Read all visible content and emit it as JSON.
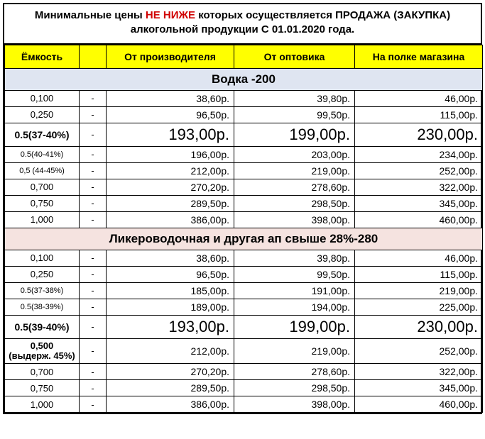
{
  "title": {
    "part1": "Минимальные цены ",
    "emph": "НЕ НИЖЕ",
    "part2": " которых осуществляется ПРОДАЖА (ЗАКУПКА) алкогольной продукции С 01.01.2020 года."
  },
  "columns": {
    "capacity": "Ёмкость",
    "spacer": "",
    "producer": "От производителя",
    "wholesaler": "От оптовика",
    "shelf": "На полке магазина"
  },
  "sections": [
    {
      "label": "Водка -200",
      "class": "s1",
      "rows": [
        {
          "cap": "0,100",
          "p": "38,60р.",
          "w": "39,80р.",
          "s": "46,00р."
        },
        {
          "cap": "0,250",
          "p": "96,50р.",
          "w": "99,50р.",
          "s": "115,00р."
        },
        {
          "cap": "0.5(37-40%)",
          "big": true,
          "p": "193,00р.",
          "w": "199,00р.",
          "s": "230,00р."
        },
        {
          "cap": "0.5(40-41%)",
          "small": true,
          "p": "196,00р.",
          "w": "203,00р.",
          "s": "234,00р."
        },
        {
          "cap": "0,5 (44-45%)",
          "small": true,
          "p": "212,00р.",
          "w": "219,00р.",
          "s": "252,00р."
        },
        {
          "cap": "0,700",
          "p": "270,20р.",
          "w": "278,60р.",
          "s": "322,00р."
        },
        {
          "cap": "0,750",
          "p": "289,50р.",
          "w": "298,50р.",
          "s": "345,00р."
        },
        {
          "cap": "1,000",
          "p": "386,00р.",
          "w": "398,00р.",
          "s": "460,00р."
        }
      ]
    },
    {
      "label": "Ликероводочная и другая ап свыше 28%-280",
      "class": "s2",
      "rows": [
        {
          "cap": "0,100",
          "p": "38,60р.",
          "w": "39,80р.",
          "s": "46,00р."
        },
        {
          "cap": "0,250",
          "p": "96,50р.",
          "w": "99,50р.",
          "s": "115,00р."
        },
        {
          "cap": "0.5(37-38%)",
          "small": true,
          "p": "185,00р.",
          "w": "191,00р.",
          "s": "219,00р."
        },
        {
          "cap": "0.5(38-39%)",
          "small": true,
          "p": "189,00р.",
          "w": "194,00р.",
          "s": "225,00р."
        },
        {
          "cap": "0.5(39-40%)",
          "big": true,
          "p": "193,00р.",
          "w": "199,00р.",
          "s": "230,00р."
        },
        {
          "cap": "0,500\n(выдерж. 45%)",
          "twoline": true,
          "bold": true,
          "p": "212,00р.",
          "w": "219,00р.",
          "s": "252,00р."
        },
        {
          "cap": "0,700",
          "p": "270,20р.",
          "w": "278,60р.",
          "s": "322,00р."
        },
        {
          "cap": "0,750",
          "p": "289,50р.",
          "w": "298,50р.",
          "s": "345,00р."
        },
        {
          "cap": "1,000",
          "p": "386,00р.",
          "w": "398,00р.",
          "s": "460,00р."
        }
      ]
    }
  ]
}
